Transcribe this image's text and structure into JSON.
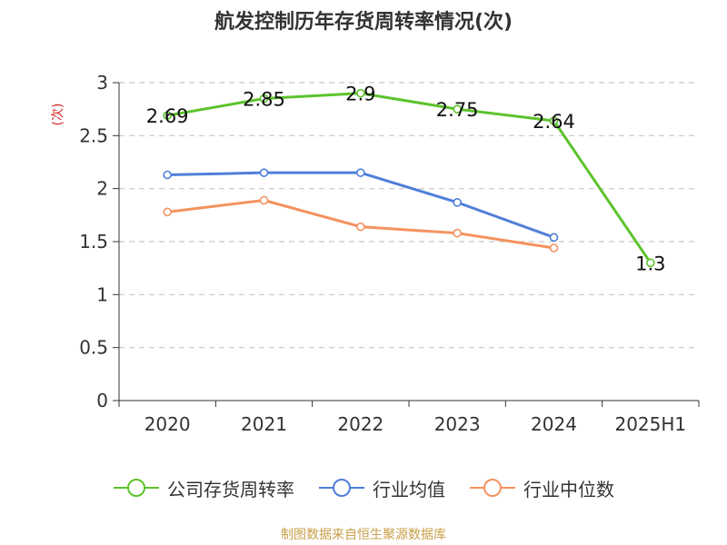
{
  "title": "航发控制历年存货周转率情况(次)",
  "source": "制图数据来自恒生聚源数据库",
  "chart_data": {
    "type": "line",
    "categories": [
      "2020",
      "2021",
      "2022",
      "2023",
      "2024",
      "2025H1"
    ],
    "ylabel": "(次)",
    "ylim": [
      0,
      3
    ],
    "yticks": [
      0,
      0.5,
      1,
      1.5,
      2,
      2.5,
      3
    ],
    "grid": true,
    "legend": "bottom",
    "series": [
      {
        "name": "公司存货周转率",
        "color": "#5cc32c",
        "labeled": true,
        "values": [
          2.69,
          2.85,
          2.9,
          2.75,
          2.64,
          1.3
        ]
      },
      {
        "name": "行业均值",
        "color": "#4f7fd8",
        "labeled": false,
        "values": [
          2.13,
          2.15,
          2.15,
          1.87,
          1.54,
          null
        ]
      },
      {
        "name": "行业中位数",
        "color": "#f4925f",
        "labeled": false,
        "values": [
          1.78,
          1.89,
          1.64,
          1.58,
          1.44,
          null
        ]
      }
    ]
  }
}
